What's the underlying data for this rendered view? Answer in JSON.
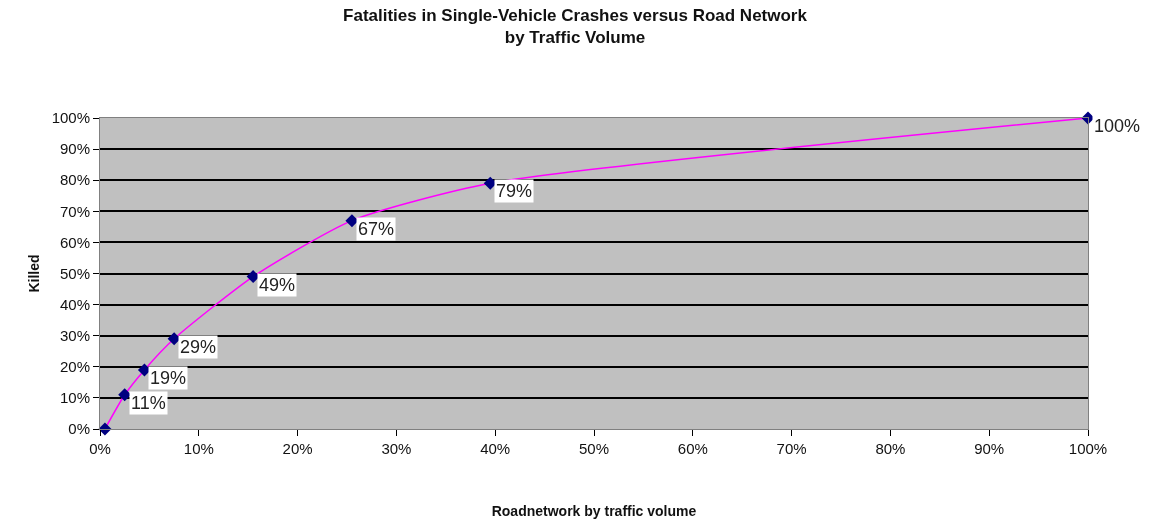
{
  "chart_data": {
    "type": "line",
    "title": "Fatalities in Single-Vehicle Crashes versus Road Network\nby Traffic Volume",
    "xlabel": "Roadnetwork by traffic volume",
    "ylabel": "Killed",
    "x": [
      0.5,
      2.5,
      4.5,
      7.5,
      15.5,
      25.5,
      39.5,
      100
    ],
    "series": [
      {
        "color": "#ff00ff",
        "values": [
          0,
          11,
          19,
          29,
          49,
          67,
          79,
          100
        ],
        "value_labels": [
          null,
          "11%",
          "19%",
          "29%",
          "49%",
          "67%",
          "79%",
          "100%"
        ]
      }
    ],
    "xlim": [
      0,
      100
    ],
    "xticks": [
      {
        "value": 0,
        "label": "0%"
      },
      {
        "value": 10,
        "label": "10%"
      },
      {
        "value": 20,
        "label": "20%"
      },
      {
        "value": 30,
        "label": "30%"
      },
      {
        "value": 40,
        "label": "40%"
      },
      {
        "value": 50,
        "label": "50%"
      },
      {
        "value": 60,
        "label": "60%"
      },
      {
        "value": 70,
        "label": "70%"
      },
      {
        "value": 80,
        "label": "80%"
      },
      {
        "value": 90,
        "label": "90%"
      },
      {
        "value": 100,
        "label": "100%"
      }
    ],
    "ylim": [
      0,
      100
    ],
    "yticks": [
      {
        "value": 0,
        "label": "0%"
      },
      {
        "value": 10,
        "label": "10%"
      },
      {
        "value": 20,
        "label": "20%"
      },
      {
        "value": 30,
        "label": "30%"
      },
      {
        "value": 40,
        "label": "40%"
      },
      {
        "value": 50,
        "label": "50%"
      },
      {
        "value": 60,
        "label": "60%"
      },
      {
        "value": 70,
        "label": "70%"
      },
      {
        "value": 80,
        "label": "80%"
      },
      {
        "value": 90,
        "label": "90%"
      },
      {
        "value": 100,
        "label": "100%"
      }
    ],
    "grid": "y",
    "marker": "diamond",
    "line_style": "solid",
    "legend": false
  }
}
